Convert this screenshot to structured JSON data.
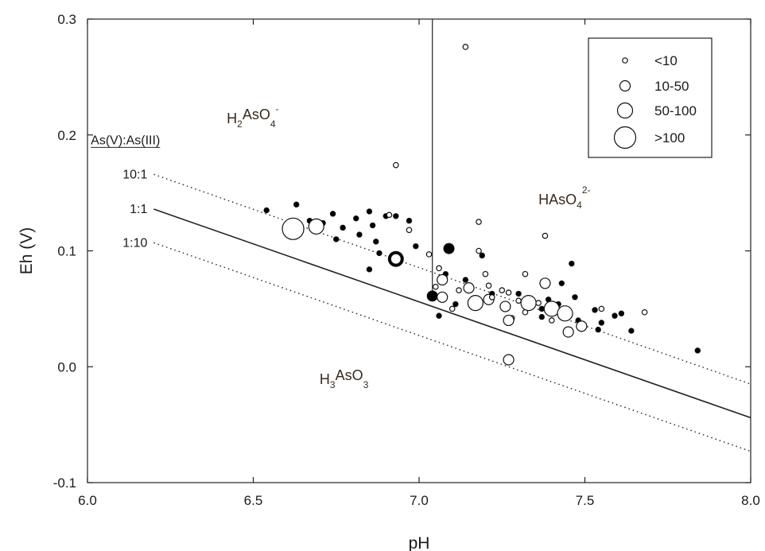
{
  "chart_data": {
    "type": "scatter",
    "xlabel": "pH",
    "ylabel": "Eh (V)",
    "xlim": [
      6.0,
      8.0
    ],
    "ylim": [
      -0.1,
      0.3
    ],
    "xticks": [
      "6.0",
      "6.5",
      "7.0",
      "7.5",
      "8.0"
    ],
    "yticks": [
      "-0.1",
      "0.0",
      "0.1",
      "0.2",
      "0.3"
    ],
    "boundary_ph": 7.04,
    "ratio_heading": "As(V):As(III)",
    "ratio_lines": [
      {
        "label": "10:1",
        "style": "dotted",
        "x": [
          6.2,
          8.0
        ],
        "y": [
          0.166,
          -0.015
        ]
      },
      {
        "label": "1:1",
        "style": "solid",
        "x": [
          6.2,
          8.0
        ],
        "y": [
          0.136,
          -0.044
        ]
      },
      {
        "label": "1:10",
        "style": "dotted",
        "x": [
          6.2,
          8.0
        ],
        "y": [
          0.107,
          -0.073
        ]
      }
    ],
    "regions": [
      {
        "base": "H",
        "sub1": "2",
        "mid": "AsO",
        "sub2": "4",
        "sup": "-",
        "ph": 6.42,
        "eh": 0.21
      },
      {
        "base": "HAsO",
        "sub1": "",
        "mid": "",
        "sub2": "4",
        "sup": "2-",
        "ph": 7.36,
        "eh": 0.14
      },
      {
        "base": "H",
        "sub1": "3",
        "mid": "AsO",
        "sub2": "3",
        "sup": "",
        "ph": 6.7,
        "eh": -0.015
      }
    ],
    "legend": {
      "placement": "top-right",
      "entries": [
        {
          "label": "<10",
          "size": 1
        },
        {
          "label": "10-50",
          "size": 2
        },
        {
          "label": "50-100",
          "size": 3
        },
        {
          "label": ">100",
          "size": 4
        }
      ]
    },
    "series": [
      {
        "fill": "black",
        "points": [
          [
            6.54,
            0.135,
            1
          ],
          [
            6.63,
            0.14,
            1
          ],
          [
            6.67,
            0.126,
            1
          ],
          [
            6.71,
            0.124,
            1
          ],
          [
            6.74,
            0.132,
            1
          ],
          [
            6.75,
            0.11,
            1
          ],
          [
            6.77,
            0.12,
            1
          ],
          [
            6.81,
            0.128,
            1
          ],
          [
            6.82,
            0.114,
            1
          ],
          [
            6.85,
            0.134,
            1
          ],
          [
            6.86,
            0.122,
            1
          ],
          [
            6.85,
            0.084,
            1
          ],
          [
            6.87,
            0.108,
            1
          ],
          [
            6.9,
            0.13,
            1
          ],
          [
            6.93,
            0.13,
            1
          ],
          [
            6.88,
            0.098,
            1
          ],
          [
            6.97,
            0.126,
            1
          ],
          [
            6.93,
            0.093,
            3
          ],
          [
            6.99,
            0.104,
            1
          ],
          [
            7.04,
            0.061,
            2
          ],
          [
            7.09,
            0.102,
            2
          ],
          [
            7.11,
            0.054,
            1
          ],
          [
            7.06,
            0.044,
            1
          ],
          [
            7.08,
            0.08,
            1
          ],
          [
            7.14,
            0.075,
            1
          ],
          [
            7.19,
            0.096,
            1
          ],
          [
            7.22,
            0.063,
            1
          ],
          [
            7.3,
            0.063,
            1
          ],
          [
            7.37,
            0.05,
            1
          ],
          [
            7.39,
            0.058,
            1
          ],
          [
            7.42,
            0.054,
            1
          ],
          [
            7.43,
            0.072,
            1
          ],
          [
            7.46,
            0.089,
            1
          ],
          [
            7.47,
            0.06,
            1
          ],
          [
            7.48,
            0.04,
            1
          ],
          [
            7.53,
            0.049,
            1
          ],
          [
            7.54,
            0.032,
            1
          ],
          [
            7.55,
            0.038,
            1
          ],
          [
            7.59,
            0.044,
            1
          ],
          [
            7.61,
            0.046,
            1
          ],
          [
            7.64,
            0.031,
            1
          ],
          [
            7.84,
            0.014,
            1
          ],
          [
            7.37,
            0.043,
            1
          ],
          [
            7.26,
            0.053,
            1
          ]
        ]
      },
      {
        "fill": "white",
        "points": [
          [
            7.14,
            0.276,
            1
          ],
          [
            6.93,
            0.174,
            1
          ],
          [
            6.62,
            0.119,
            4
          ],
          [
            6.69,
            0.121,
            3
          ],
          [
            6.91,
            0.131,
            1
          ],
          [
            6.97,
            0.118,
            1
          ],
          [
            6.93,
            0.093,
            2
          ],
          [
            7.03,
            0.097,
            1
          ],
          [
            7.06,
            0.085,
            1
          ],
          [
            7.18,
            0.125,
            1
          ],
          [
            7.18,
            0.1,
            1
          ],
          [
            7.38,
            0.113,
            1
          ],
          [
            7.05,
            0.069,
            1
          ],
          [
            7.07,
            0.075,
            2
          ],
          [
            7.07,
            0.06,
            2
          ],
          [
            7.15,
            0.068,
            2
          ],
          [
            7.21,
            0.058,
            2
          ],
          [
            7.17,
            0.055,
            3
          ],
          [
            7.22,
            0.06,
            1
          ],
          [
            7.26,
            0.053,
            1
          ],
          [
            7.27,
            0.064,
            1
          ],
          [
            7.28,
            0.042,
            1
          ],
          [
            7.26,
            0.052,
            2
          ],
          [
            7.27,
            0.04,
            2
          ],
          [
            7.3,
            0.057,
            1
          ],
          [
            7.33,
            0.055,
            3
          ],
          [
            7.38,
            0.072,
            2
          ],
          [
            7.4,
            0.05,
            3
          ],
          [
            7.44,
            0.046,
            3
          ],
          [
            7.45,
            0.03,
            2
          ],
          [
            7.49,
            0.035,
            2
          ],
          [
            7.55,
            0.05,
            1
          ],
          [
            7.68,
            0.047,
            1
          ],
          [
            7.27,
            0.006,
            2
          ],
          [
            7.32,
            0.08,
            1
          ],
          [
            7.1,
            0.05,
            1
          ],
          [
            7.21,
            0.07,
            1
          ],
          [
            7.25,
            0.066,
            1
          ],
          [
            7.32,
            0.047,
            1
          ],
          [
            7.36,
            0.055,
            1
          ],
          [
            7.4,
            0.04,
            1
          ],
          [
            7.12,
            0.066,
            1
          ],
          [
            7.2,
            0.08,
            1
          ]
        ]
      }
    ]
  }
}
